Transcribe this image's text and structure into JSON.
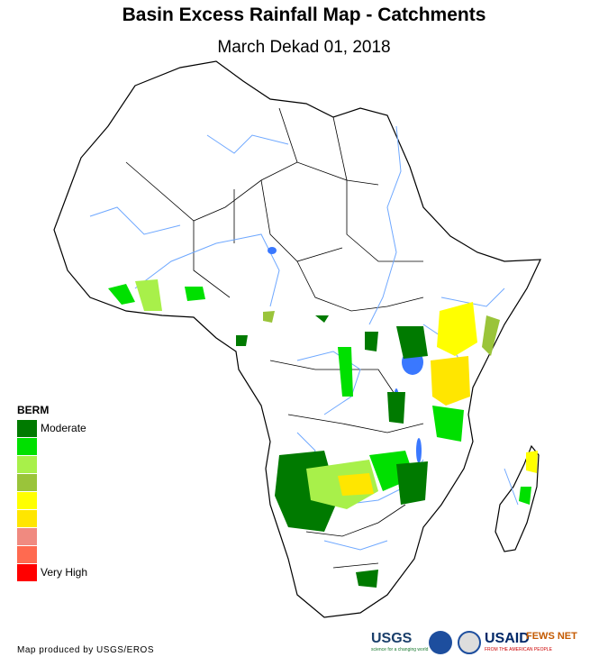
{
  "title": "Basin Excess Rainfall Map - Catchments",
  "subtitle": "March Dekad 01, 2018",
  "legend": {
    "title": "BERM",
    "items": [
      {
        "label": "Moderate",
        "color": "#007a00"
      },
      {
        "label": "",
        "color": "#00e000"
      },
      {
        "label": "",
        "color": "#a8f04a"
      },
      {
        "label": "",
        "color": "#9ac43a"
      },
      {
        "label": "",
        "color": "#ffff00"
      },
      {
        "label": "",
        "color": "#ffe600"
      },
      {
        "label": "",
        "color": "#f08a80"
      },
      {
        "label": "",
        "color": "#ff6a50"
      },
      {
        "label": "Very High",
        "color": "#ff0000"
      }
    ]
  },
  "credit": "Map produced by USGS/EROS",
  "logos": {
    "usgs": "USGS",
    "usgs_tagline": "science for a changing world",
    "usaid": "USAID",
    "usaid_tagline": "FROM THE AMERICAN PEOPLE",
    "fewsnet": "FEWS NET"
  },
  "colors": {
    "rivers": "#6fa8ff",
    "lakes": "#3a78ff",
    "borders": "#000000",
    "land": "#ffffff"
  }
}
